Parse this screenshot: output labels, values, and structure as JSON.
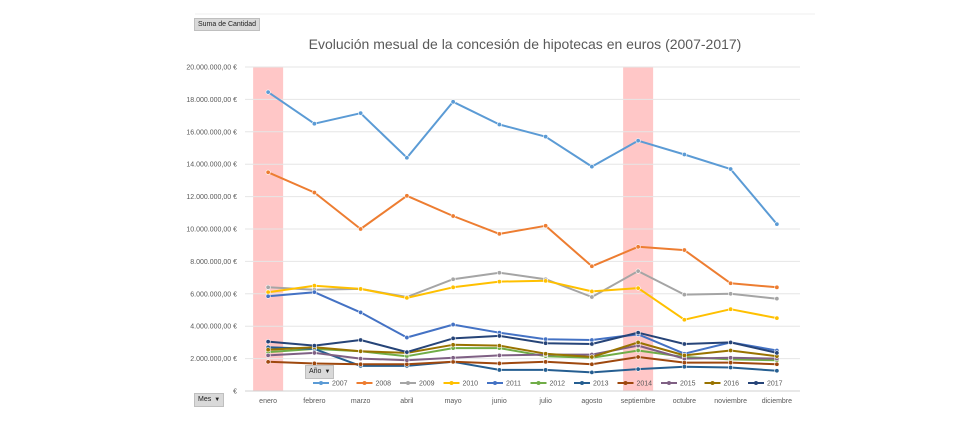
{
  "pivot": {
    "value_field": "Suma de Cantidad",
    "legend_field": "Año",
    "axis_field": "Mes",
    "dropdown_icon": "chevron-down-icon"
  },
  "chart_data": {
    "type": "line",
    "title": "Evolución mesual de la concesión de hipotecas en euros (2007-2017)",
    "xlabel": "",
    "ylabel": "",
    "categories": [
      "enero",
      "febrero",
      "marzo",
      "abril",
      "mayo",
      "junio",
      "julio",
      "agosto",
      "septiembre",
      "octubre",
      "noviembre",
      "diciembre"
    ],
    "ylim": [
      0,
      20000000
    ],
    "yticks": [
      {
        "value": 0,
        "label": "€"
      },
      {
        "value": 2000000,
        "label": "2.000.000,00 €"
      },
      {
        "value": 4000000,
        "label": "4.000.000,00 €"
      },
      {
        "value": 6000000,
        "label": "6.000.000,00 €"
      },
      {
        "value": 8000000,
        "label": "8.000.000,00 €"
      },
      {
        "value": 10000000,
        "label": "10.000.000,00 €"
      },
      {
        "value": 12000000,
        "label": "12.000.000,00 €"
      },
      {
        "value": 14000000,
        "label": "14.000.000,00 €"
      },
      {
        "value": 16000000,
        "label": "16.000.000,00 €"
      },
      {
        "value": 18000000,
        "label": "18.000.000,00 €"
      },
      {
        "value": 20000000,
        "label": "20.000.000,00 €"
      }
    ],
    "highlight_categories": [
      "enero",
      "septiembre"
    ],
    "highlight_color": "#ffc7c7",
    "grid": "horizontal",
    "legend_position": "bottom",
    "series": [
      {
        "name": "2007",
        "color": "#5b9bd5",
        "values": [
          18450000,
          16500000,
          17150000,
          14400000,
          17850000,
          16450000,
          15700000,
          13850000,
          15450000,
          14600000,
          13700000,
          10300000
        ]
      },
      {
        "name": "2008",
        "color": "#ed7d31",
        "values": [
          13500000,
          12250000,
          10000000,
          12050000,
          10800000,
          9700000,
          10200000,
          7700000,
          8900000,
          8700000,
          6650000,
          6400000
        ]
      },
      {
        "name": "2009",
        "color": "#a5a5a5",
        "values": [
          6400000,
          6250000,
          6300000,
          5800000,
          6900000,
          7300000,
          6900000,
          5800000,
          7400000,
          5950000,
          6000000,
          5700000
        ]
      },
      {
        "name": "2010",
        "color": "#ffc000",
        "values": [
          6100000,
          6500000,
          6300000,
          5750000,
          6400000,
          6750000,
          6800000,
          6150000,
          6350000,
          4400000,
          5050000,
          4500000
        ]
      },
      {
        "name": "2011",
        "color": "#4472c4",
        "values": [
          5850000,
          6100000,
          4850000,
          3300000,
          4100000,
          3600000,
          3200000,
          3150000,
          3500000,
          2300000,
          3000000,
          2500000
        ]
      },
      {
        "name": "2012",
        "color": "#70ad47",
        "values": [
          2400000,
          2600000,
          2450000,
          2150000,
          2650000,
          2650000,
          2150000,
          2050000,
          2500000,
          2100000,
          1950000,
          1900000
        ]
      },
      {
        "name": "2013",
        "color": "#255e91",
        "values": [
          2700000,
          2600000,
          1550000,
          1550000,
          1800000,
          1300000,
          1300000,
          1150000,
          1350000,
          1500000,
          1450000,
          1250000
        ]
      },
      {
        "name": "2014",
        "color": "#9e480e",
        "values": [
          1800000,
          1700000,
          1650000,
          1650000,
          1800000,
          1700000,
          1800000,
          1650000,
          2100000,
          1750000,
          1750000,
          1650000
        ]
      },
      {
        "name": "2015",
        "color": "#7f6084",
        "values": [
          2200000,
          2350000,
          2000000,
          1900000,
          2050000,
          2200000,
          2250000,
          2250000,
          2800000,
          2000000,
          2050000,
          2000000
        ]
      },
      {
        "name": "2016",
        "color": "#997300",
        "values": [
          2550000,
          2700000,
          2450000,
          2350000,
          2850000,
          2800000,
          2300000,
          2100000,
          3000000,
          2200000,
          2500000,
          2150000
        ]
      },
      {
        "name": "2017",
        "color": "#264478",
        "values": [
          3050000,
          2800000,
          3150000,
          2400000,
          3250000,
          3400000,
          2950000,
          2900000,
          3600000,
          2900000,
          3000000,
          2350000
        ]
      }
    ]
  }
}
